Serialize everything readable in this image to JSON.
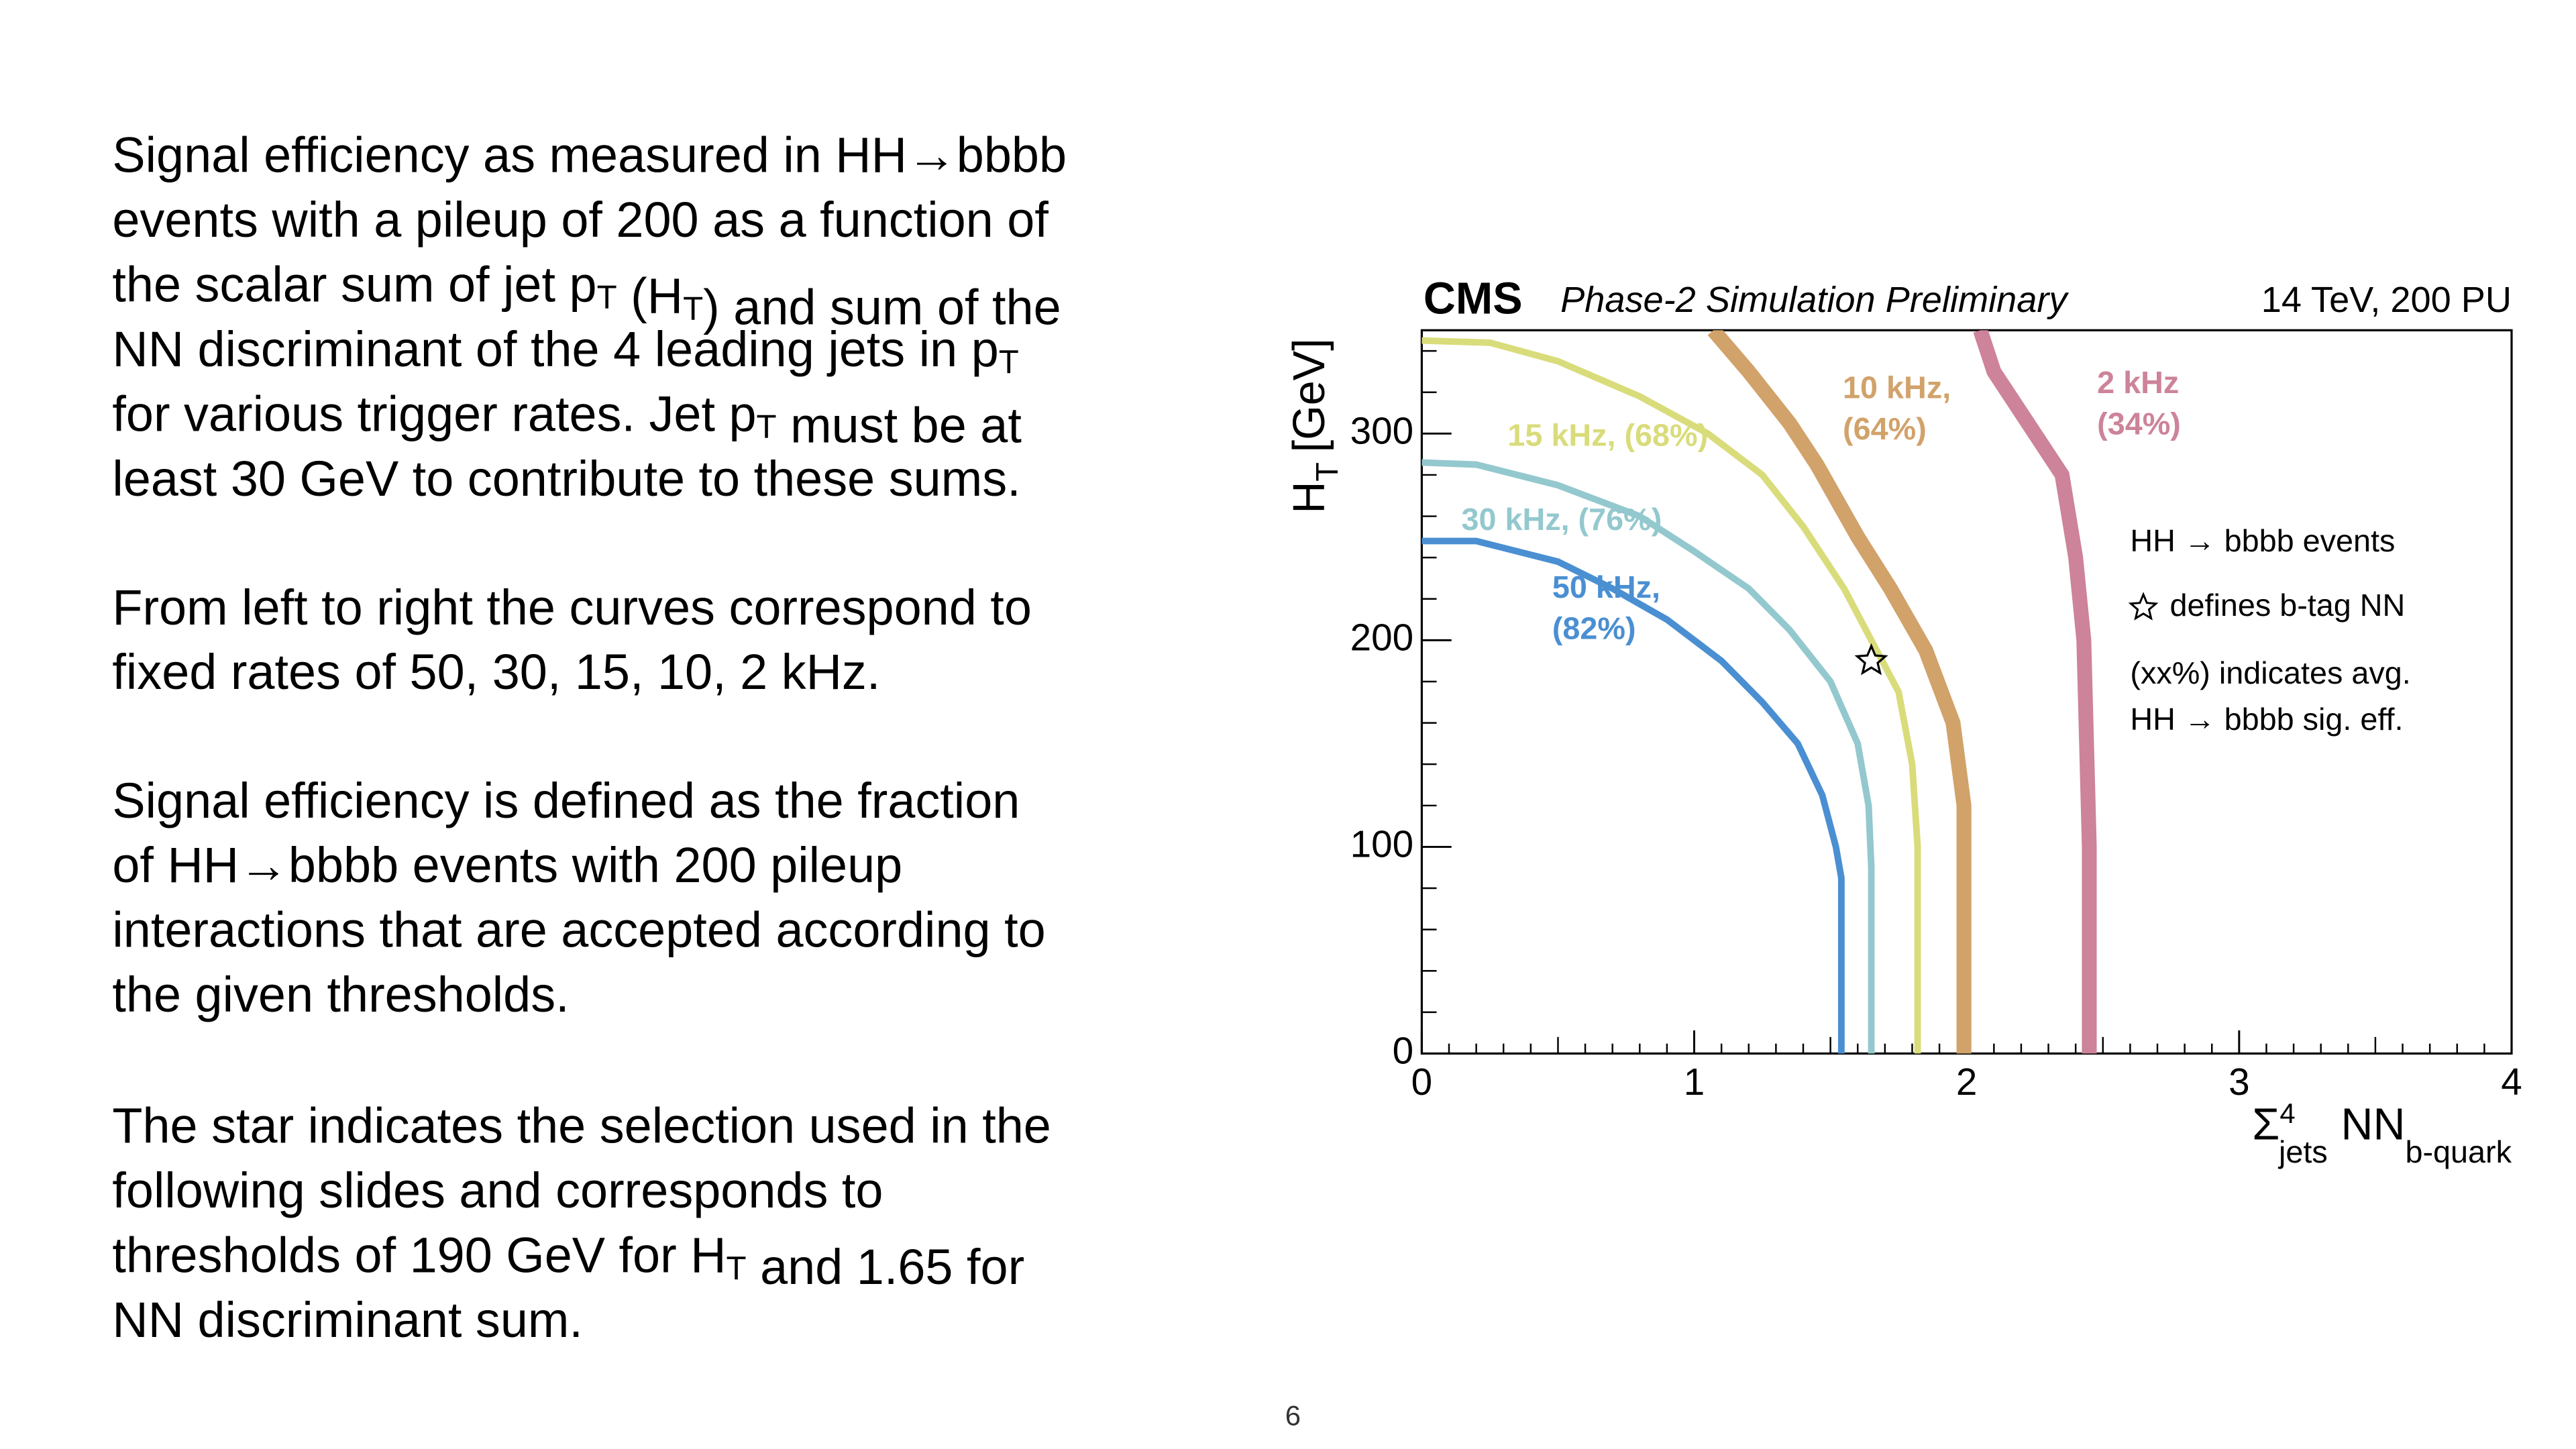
{
  "text": {
    "paragraphs": [
      [
        [
          "Signal efficiency as measured in HH→bbbb"
        ],
        [
          "events with a pileup of 200 as a function of"
        ],
        [
          "the scalar sum of jet p",
          {
            "sub": "T"
          },
          " (H",
          {
            "sub": "T"
          },
          ") and sum of the"
        ],
        [
          "NN discriminant of the 4 leading jets in p",
          {
            "sub": "T"
          }
        ],
        [
          "for various trigger rates. Jet p",
          {
            "sub": "T"
          },
          " must be at"
        ],
        [
          "least 30 GeV to contribute to these sums."
        ]
      ],
      [
        [
          "From left to right the curves correspond to"
        ],
        [
          "fixed rates of 50, 30, 15, 10, 2 kHz."
        ]
      ],
      [
        [
          "Signal efficiency is defined as the fraction"
        ],
        [
          "of HH→bbbb events with 200 pileup"
        ],
        [
          "interactions that are accepted according to"
        ],
        [
          "the given thresholds."
        ]
      ],
      [
        [
          "The star indicates the selection used in the"
        ],
        [
          "following slides and corresponds to"
        ],
        [
          "thresholds of 190 GeV for H",
          {
            "sub": "T"
          },
          " and 1.65 for"
        ],
        [
          "NN discriminant sum."
        ]
      ]
    ],
    "page_number": "6"
  },
  "chart_data": {
    "type": "line",
    "title": "CMS",
    "subtitle": "Phase-2 Simulation Preliminary",
    "energy_label": "14 TeV, 200 PU",
    "xlabel_parts": [
      "Σ",
      "4",
      "jets",
      "NN",
      "b-quark"
    ],
    "ylabel_parts": [
      "H",
      "T",
      "[GeV]"
    ],
    "xlim": [
      0,
      4
    ],
    "xticks": [
      0,
      1,
      2,
      3,
      4
    ],
    "ylim": [
      0,
      350
    ],
    "yticks": [
      0,
      100,
      200,
      300
    ],
    "series": [
      {
        "label": [
          "50 kHz,",
          "(82%)"
        ],
        "color": "#4a8fd2",
        "x": [
          0,
          0.2,
          0.5,
          0.7,
          0.9,
          1.1,
          1.25,
          1.38,
          1.47,
          1.52,
          1.54,
          1.54
        ],
        "values": [
          248,
          248,
          238,
          225,
          210,
          190,
          170,
          150,
          125,
          100,
          85,
          0
        ]
      },
      {
        "label": [
          "30 kHz, (76%)"
        ],
        "color": "#93c8ce",
        "x": [
          0,
          0.2,
          0.5,
          0.8,
          1.0,
          1.2,
          1.35,
          1.5,
          1.6,
          1.64,
          1.65,
          1.65
        ],
        "values": [
          286,
          285,
          275,
          260,
          243,
          225,
          205,
          180,
          150,
          120,
          90,
          0
        ]
      },
      {
        "label": [
          "15 kHz, (68%)"
        ],
        "color": "#d9dc7a",
        "x": [
          0,
          0.25,
          0.5,
          0.8,
          1.05,
          1.25,
          1.4,
          1.55,
          1.65,
          1.75,
          1.8,
          1.82,
          1.82
        ],
        "values": [
          345,
          344,
          335,
          318,
          300,
          280,
          255,
          225,
          200,
          175,
          140,
          100,
          0
        ]
      },
      {
        "label": [
          "10 kHz,",
          "(64%)"
        ],
        "color": "#d1a26a",
        "x": [
          1.07,
          1.2,
          1.35,
          1.45,
          1.6,
          1.72,
          1.85,
          1.95,
          1.99,
          1.99
        ],
        "values": [
          350,
          330,
          305,
          285,
          250,
          225,
          195,
          160,
          120,
          0
        ]
      },
      {
        "label": [
          "2 kHz",
          "(34%)"
        ],
        "color": "#cd8399",
        "x": [
          2.05,
          2.1,
          2.25,
          2.35,
          2.4,
          2.43,
          2.44,
          2.45,
          2.45
        ],
        "values": [
          350,
          330,
          300,
          280,
          240,
          200,
          150,
          100,
          0
        ]
      }
    ],
    "star": {
      "x": 1.65,
      "y": 190
    },
    "legend_lines": [
      "HH → bbbb events",
      "defines b-tag NN",
      "(xx%) indicates avg.",
      "HH → bbbb sig. eff."
    ]
  }
}
